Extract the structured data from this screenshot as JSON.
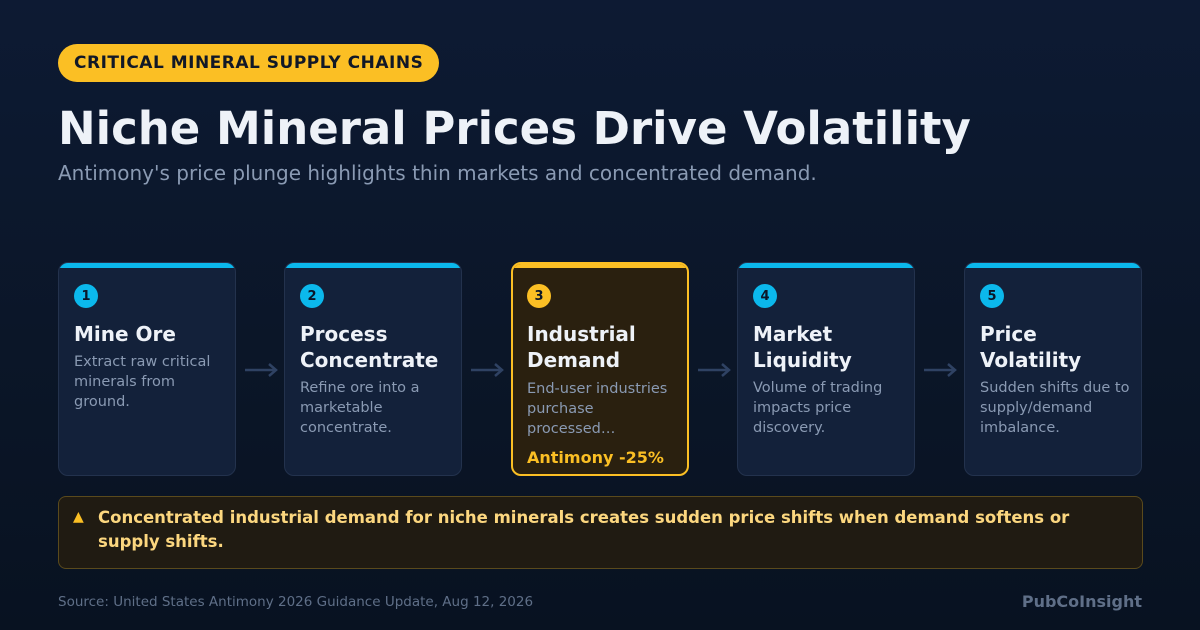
{
  "badge": "CRITICAL MINERAL SUPPLY CHAINS",
  "title": "Niche Mineral Prices Drive Volatility",
  "subtitle": "Antimony's price plunge highlights thin markets and concentrated demand.",
  "steps": [
    {
      "num": "1",
      "title": "Mine Ore",
      "desc": "Extract raw critical minerals from ground."
    },
    {
      "num": "2",
      "title": "Process Concentrate",
      "desc": "Refine ore into a marketable concentrate."
    },
    {
      "num": "3",
      "title": "Industrial Demand",
      "desc": "End-user industries purchase processed…",
      "stat": "Antimony -25%"
    },
    {
      "num": "4",
      "title": "Market Liquidity",
      "desc": "Volume of trading impacts price discovery."
    },
    {
      "num": "5",
      "title": "Price Volatility",
      "desc": "Sudden shifts due to supply/demand imbalance."
    }
  ],
  "callout": {
    "icon": "warning-icon",
    "text": "Concentrated industrial demand for niche minerals creates sudden price shifts when demand softens or supply shifts."
  },
  "source": "Source: United States Antimony 2026 Guidance Update, Aug 12, 2026",
  "brand": "PubCoInsight",
  "colors": {
    "accent_blue": "#0bb8ec",
    "accent_gold": "#fbbf24",
    "background": "#0b1628",
    "card": "#13213a"
  }
}
